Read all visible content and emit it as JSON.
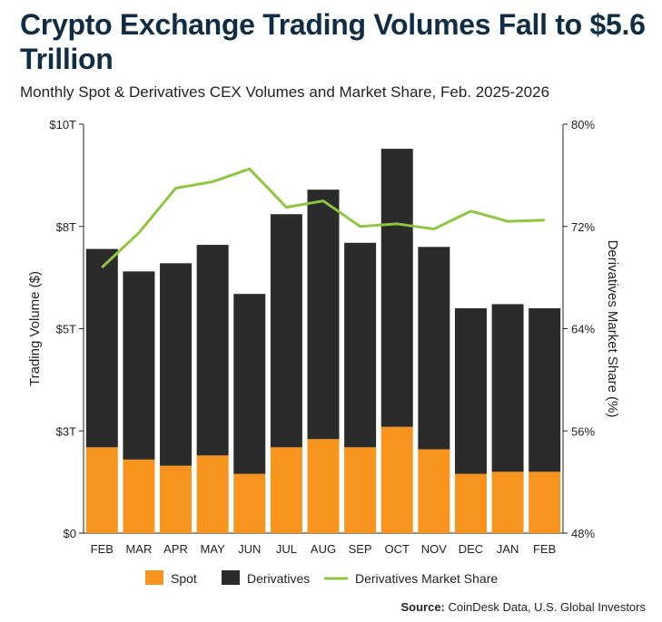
{
  "title": "Crypto Exchange Trading Volumes Fall to $5.6 Trillion",
  "subtitle": "Monthly Spot & Derivatives CEX Volumes and Market Share, Feb. 2025-2026",
  "source_label": "Source:",
  "source_text": "CoinDesk Data, U.S. Global Investors",
  "colors": {
    "spot": "#f7941d",
    "derivatives": "#2b2b2b",
    "share": "#8dc63f",
    "title": "#0f2d44"
  },
  "chart_data": {
    "type": "bar",
    "stacked": true,
    "categories": [
      "FEB",
      "MAR",
      "APR",
      "MAY",
      "JUN",
      "JUL",
      "AUG",
      "SEP",
      "OCT",
      "NOV",
      "DEC",
      "JAN",
      "FEB"
    ],
    "series": [
      {
        "name": "Spot",
        "values": [
          2.1,
          1.8,
          1.65,
          1.9,
          1.45,
          2.1,
          2.3,
          2.1,
          2.6,
          2.05,
          1.45,
          1.5,
          1.5
        ]
      },
      {
        "name": "Derivatives",
        "values": [
          4.85,
          4.6,
          4.95,
          5.15,
          4.4,
          5.7,
          6.1,
          5.0,
          6.8,
          4.95,
          4.05,
          4.1,
          4.0
        ]
      }
    ],
    "line_series": {
      "name": "Derivatives Market Share",
      "axis": "right",
      "values": [
        68.8,
        71.5,
        75.0,
        75.5,
        76.5,
        73.5,
        74.0,
        72.0,
        72.2,
        71.8,
        73.2,
        72.4,
        72.5
      ]
    },
    "ylabel": "Trading Volume ($)",
    "y2label": "Derivatives Market Share (%)",
    "ylim": [
      0,
      10
    ],
    "y2lim": [
      48,
      80
    ],
    "y_ticks": [
      "$0",
      "$3T",
      "$5T",
      "$8T",
      "$10T"
    ],
    "y_tick_values": [
      0,
      2.5,
      5,
      7.5,
      10
    ],
    "y2_ticks": [
      "48%",
      "56%",
      "64%",
      "72%",
      "80%"
    ],
    "y2_tick_values": [
      48,
      56,
      64,
      72,
      80
    ],
    "grid": false,
    "legend_position": "bottom"
  }
}
